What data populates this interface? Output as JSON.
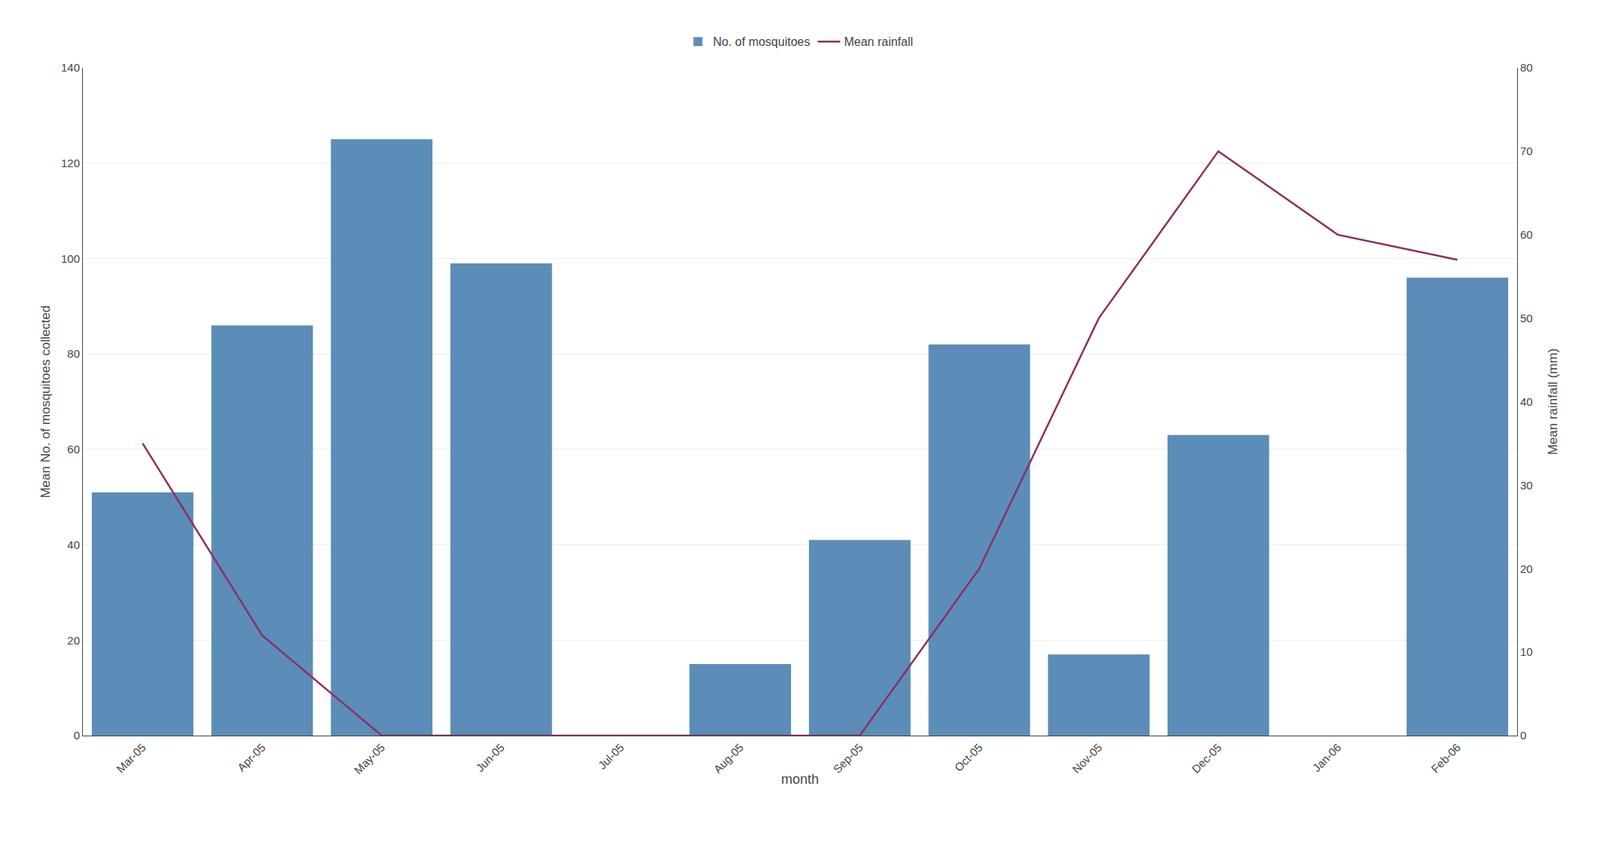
{
  "chart_data": {
    "type": "bar",
    "xlabel": "month",
    "ylabel": "Mean No. of mosquitoes collected",
    "y2label": "Mean rainfall (mm)",
    "categories": [
      "Mar-05",
      "Apr-05",
      "May-05",
      "Jun-05",
      "Jul-05",
      "Aug-05",
      "Sep-05",
      "Oct-05",
      "Nov-05",
      "Dec-05",
      "Jan-06",
      "Feb-06"
    ],
    "series": [
      {
        "name": "No. of mosquitoes",
        "type": "bar",
        "color": "#5b8db8",
        "values": [
          51,
          86,
          125,
          99,
          0,
          15,
          41,
          82,
          17,
          63,
          0,
          96
        ]
      },
      {
        "name": "Mean rainfall",
        "type": "line",
        "axis": "y2",
        "color": "#8b3060",
        "values": [
          35,
          12,
          0,
          0,
          0,
          0,
          0,
          20,
          50,
          70,
          60,
          57
        ]
      }
    ],
    "ylim": [
      0,
      140
    ],
    "yticks": [
      0,
      20,
      40,
      60,
      80,
      100,
      120,
      140
    ],
    "y2lim": [
      0,
      80
    ],
    "y2ticks": [
      0,
      10,
      20,
      30,
      40,
      50,
      60,
      70,
      80
    ],
    "grid": true,
    "legend": "top"
  }
}
